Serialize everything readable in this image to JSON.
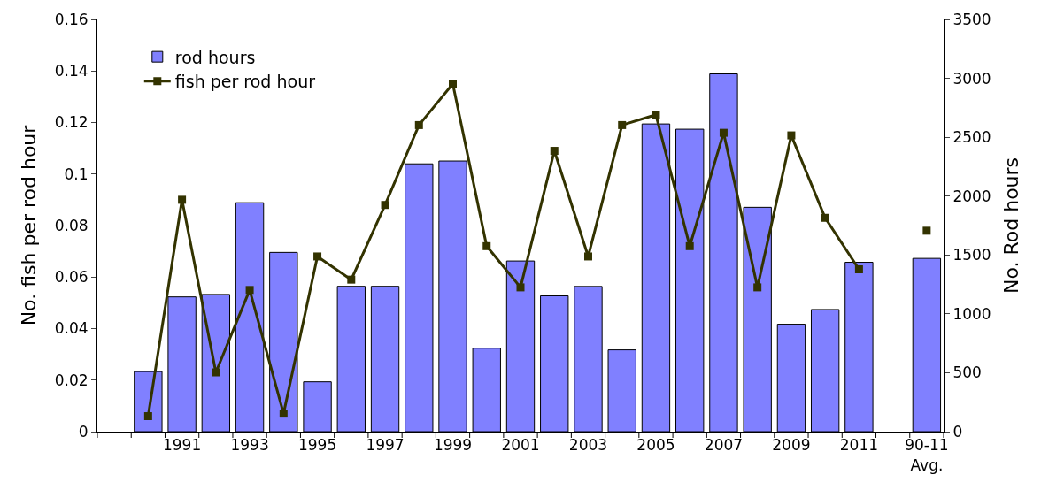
{
  "chart_data": {
    "type": "bar",
    "categories": [
      null,
      null,
      "1991",
      null,
      "1993",
      null,
      "1995",
      null,
      "1997",
      null,
      "1999",
      null,
      "2001",
      null,
      "2003",
      null,
      "2005",
      null,
      "2007",
      null,
      "2009",
      null,
      "2011",
      null,
      "90-11\nAvg."
    ],
    "series": [
      {
        "name": "rod hours",
        "axis": "y2",
        "color": "#8080ff",
        "values": [
          null,
          510,
          1144,
          1165,
          1944,
          1522,
          423,
          1234,
          1234,
          2274,
          2298,
          708,
          1449,
          1153,
          1233,
          694,
          2613,
          2568,
          3038,
          1905,
          912,
          1037,
          1438,
          null,
          1471
        ]
      },
      {
        "name": "fish per rod hour",
        "type": "line",
        "color": "#333300",
        "values": [
          null,
          0.006,
          0.09,
          0.023,
          0.055,
          0.007,
          0.068,
          0.059,
          0.088,
          0.119,
          0.135,
          0.072,
          0.056,
          0.109,
          0.068,
          0.119,
          0.123,
          0.072,
          0.116,
          0.056,
          0.115,
          0.083,
          0.063,
          null,
          0.078
        ]
      }
    ],
    "ylabel": "No. fish per rod hour",
    "y2label": "No. Rod hours",
    "ylim": [
      0,
      0.16
    ],
    "yticks": [
      0,
      0.02,
      0.04,
      0.06,
      0.08,
      0.1,
      0.12,
      0.14,
      0.16
    ],
    "y2lim": [
      0,
      3500
    ],
    "y2ticks": [
      0,
      500,
      1000,
      1500,
      2000,
      2500,
      3000,
      3500
    ],
    "marker": "square",
    "line_style": "solid",
    "legend": "top left"
  }
}
